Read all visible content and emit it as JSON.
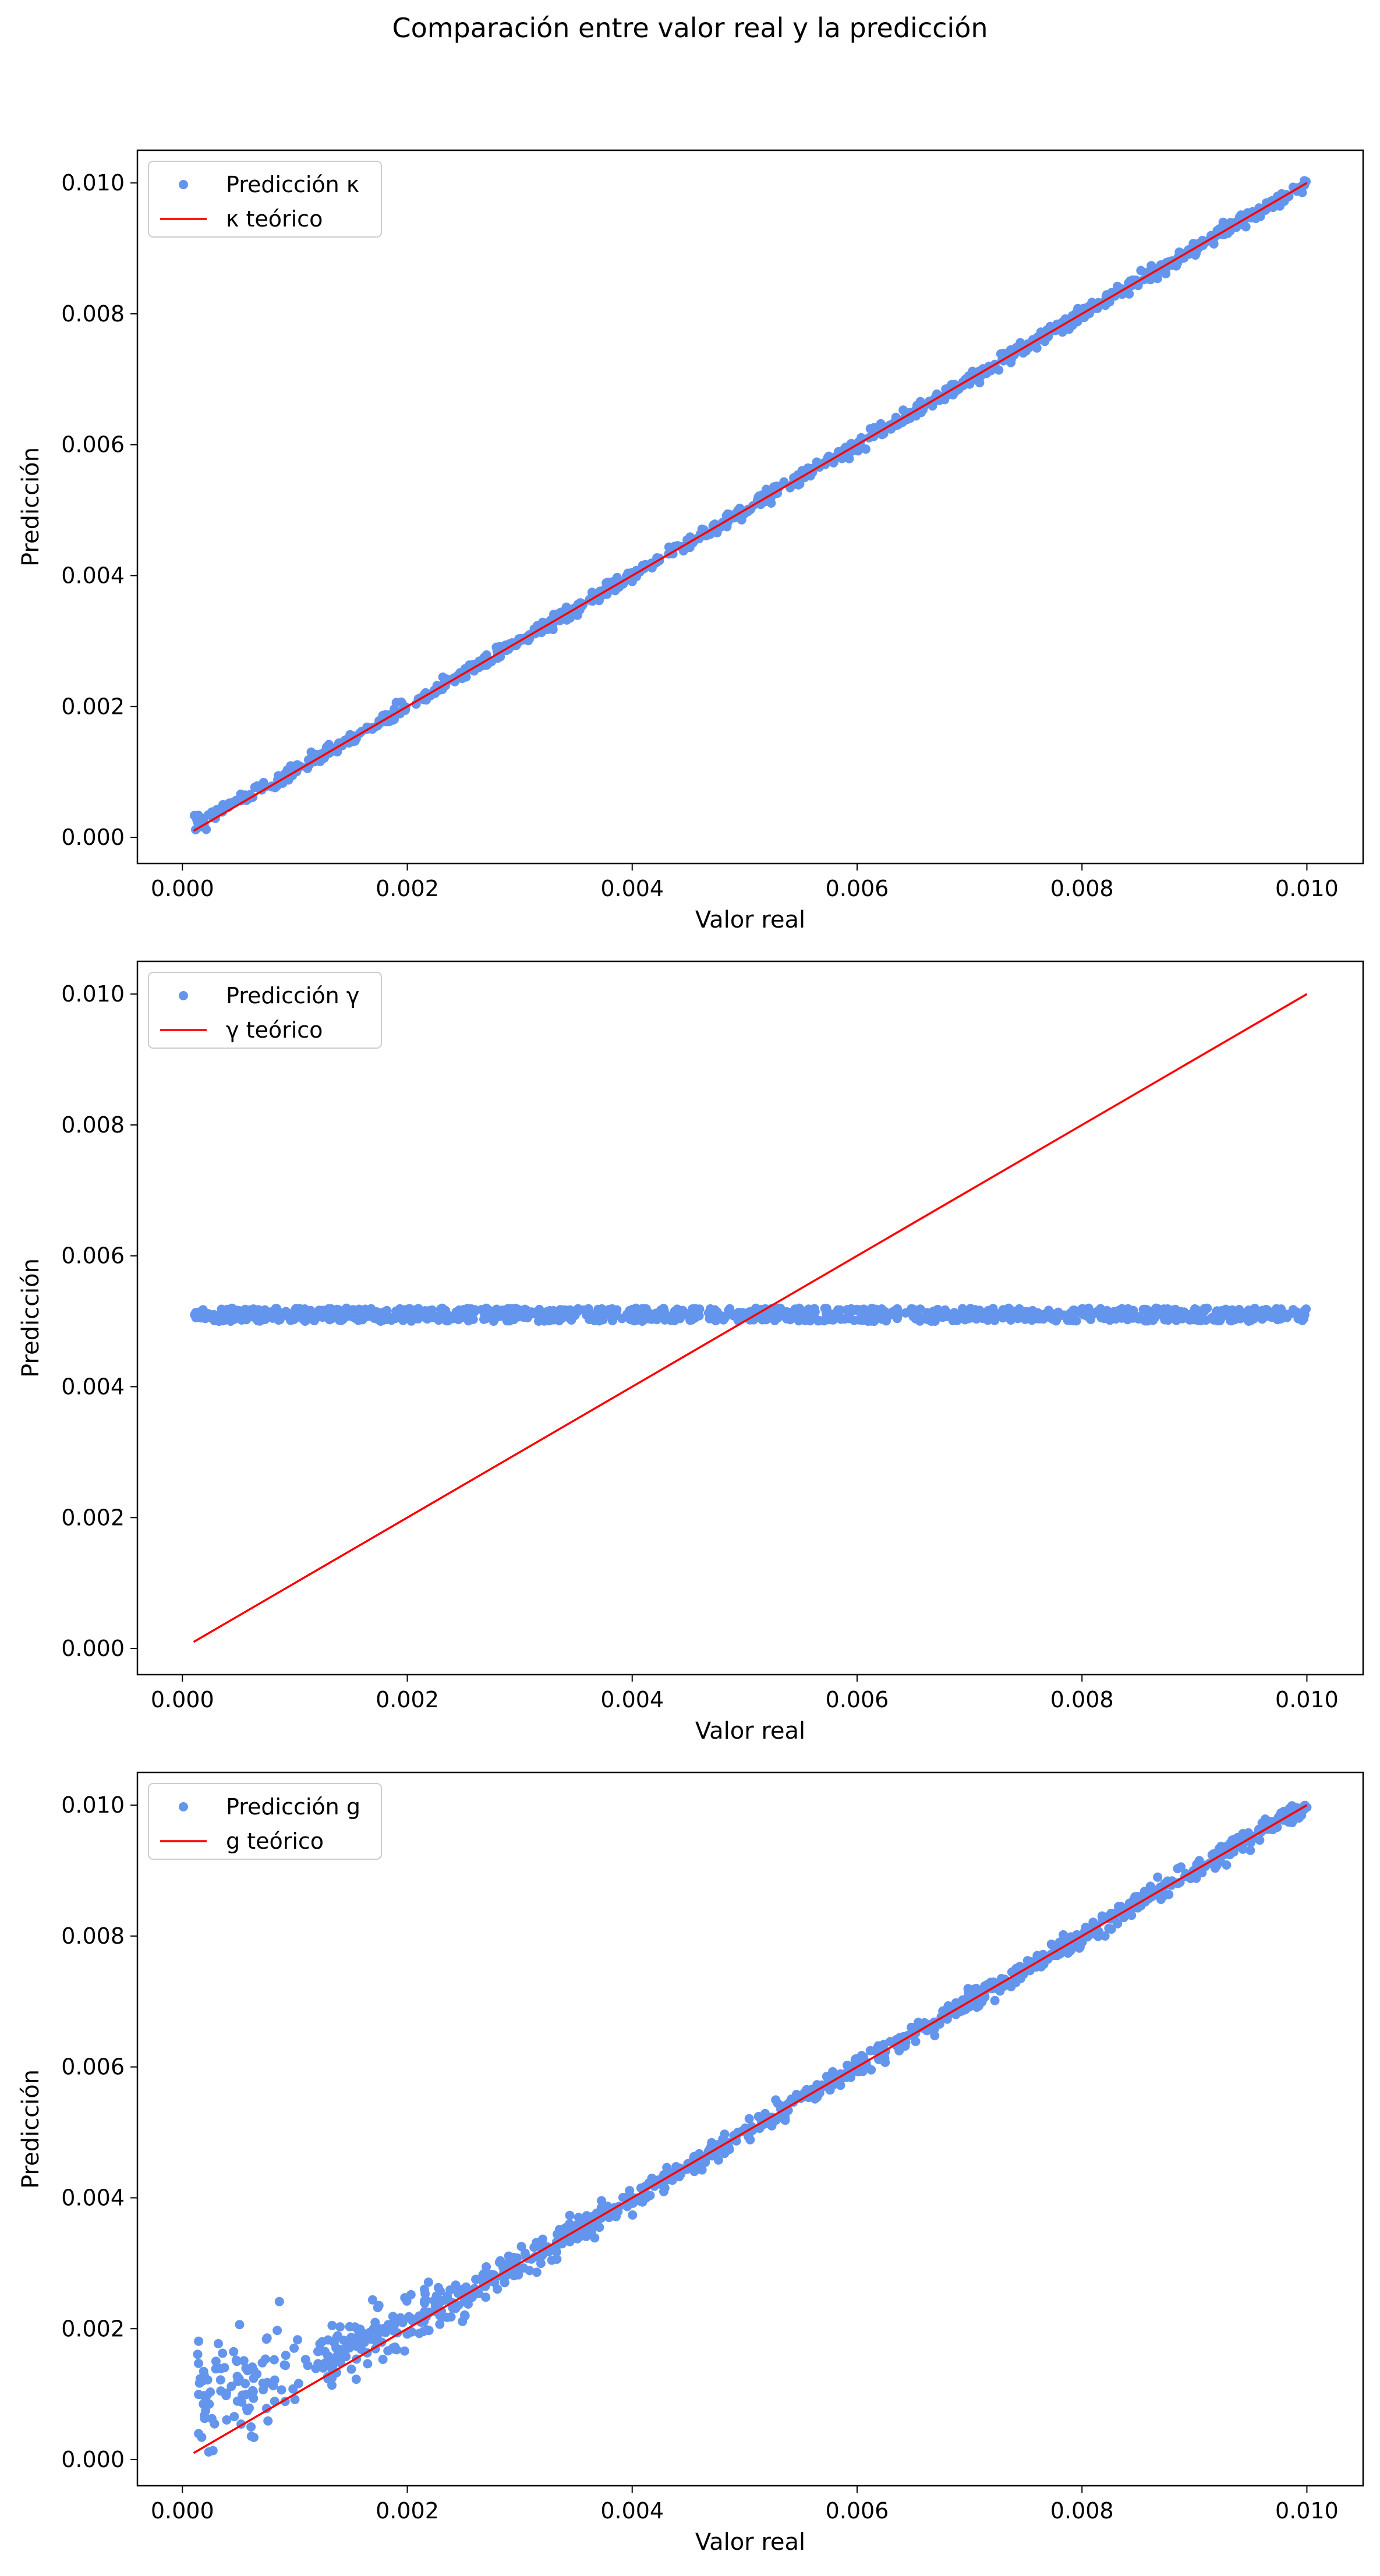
{
  "figure": {
    "suptitle": "Comparación entre valor real y la predicción"
  },
  "colors": {
    "prediction": "#6495ed",
    "theory": "#ff0000",
    "axes": "#000000",
    "legend_border": "#cccccc"
  },
  "chart_data": [
    {
      "type": "scatter",
      "xlabel": "Valor real",
      "ylabel": "Predicción",
      "xlim": [
        -0.0004,
        0.0105
      ],
      "ylim": [
        -0.0004,
        0.0105
      ],
      "xticks": [
        "0.000",
        "0.002",
        "0.004",
        "0.006",
        "0.008",
        "0.010"
      ],
      "xtick_values": [
        0,
        0.002,
        0.004,
        0.006,
        0.008,
        0.01
      ],
      "yticks": [
        "0.000",
        "0.002",
        "0.004",
        "0.006",
        "0.008",
        "0.010"
      ],
      "ytick_values": [
        0,
        0.002,
        0.004,
        0.006,
        0.008,
        0.01
      ],
      "grid": false,
      "legend_position": "top-left",
      "series": [
        {
          "name": "Predicción κ",
          "kind": "points",
          "pattern": "tight scatter around y = x, slightly above near origin (~0.0002 at x=0.0001)",
          "x_range": [
            0.0001,
            0.01
          ],
          "noise_sd": 5e-05
        },
        {
          "name": "κ teórico",
          "kind": "line",
          "x": [
            0.0001,
            0.01
          ],
          "y": [
            0.0001,
            0.01
          ]
        }
      ]
    },
    {
      "type": "scatter",
      "xlabel": "Valor real",
      "ylabel": "Predicción",
      "xlim": [
        -0.0004,
        0.0105
      ],
      "ylim": [
        -0.0004,
        0.0105
      ],
      "xticks": [
        "0.000",
        "0.002",
        "0.004",
        "0.006",
        "0.008",
        "0.010"
      ],
      "xtick_values": [
        0,
        0.002,
        0.004,
        0.006,
        0.008,
        0.01
      ],
      "yticks": [
        "0.000",
        "0.002",
        "0.004",
        "0.006",
        "0.008",
        "0.010"
      ],
      "ytick_values": [
        0,
        0.002,
        0.004,
        0.006,
        0.008,
        0.01
      ],
      "grid": false,
      "legend_position": "top-left",
      "series": [
        {
          "name": "Predicción γ",
          "kind": "points",
          "pattern": "flat band at y ≈ 0.0051 (between 0.0050 and 0.0052) for all x",
          "x_range": [
            0.0001,
            0.01
          ],
          "y_center": 0.0051,
          "y_halfwidth": 0.0001
        },
        {
          "name": "γ teórico",
          "kind": "line",
          "x": [
            0.0001,
            0.01
          ],
          "y": [
            0.0001,
            0.01
          ]
        }
      ]
    },
    {
      "type": "scatter",
      "xlabel": "Valor real",
      "ylabel": "Predicción",
      "xlim": [
        -0.0004,
        0.0105
      ],
      "ylim": [
        -0.0004,
        0.0105
      ],
      "xticks": [
        "0.000",
        "0.002",
        "0.004",
        "0.006",
        "0.008",
        "0.010"
      ],
      "xtick_values": [
        0,
        0.002,
        0.004,
        0.006,
        0.008,
        0.01
      ],
      "yticks": [
        "0.000",
        "0.002",
        "0.004",
        "0.006",
        "0.008",
        "0.010"
      ],
      "ytick_values": [
        0,
        0.002,
        0.004,
        0.006,
        0.008,
        0.01
      ],
      "grid": false,
      "legend_position": "top-left",
      "series": [
        {
          "name": "Predicción g",
          "kind": "points",
          "pattern": "scatter around y = x, noisy for small x (0.0007–0.0021 at x≈0.0001–0.001), narrowing toward x = 0.01",
          "x_range": [
            0.0001,
            0.01
          ],
          "noise_sd_low_x": 0.00045,
          "noise_sd_high_x": 8e-05
        },
        {
          "name": "g teórico",
          "kind": "line",
          "x": [
            0.0001,
            0.01
          ],
          "y": [
            0.0001,
            0.01
          ]
        }
      ]
    }
  ]
}
